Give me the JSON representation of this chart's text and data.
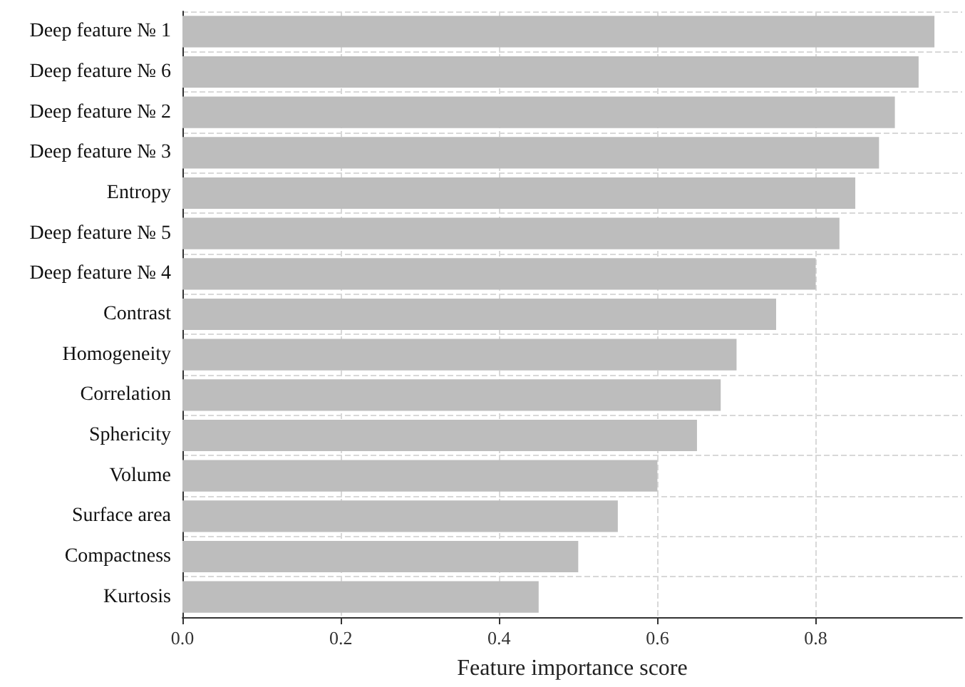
{
  "chart_data": {
    "type": "bar",
    "orientation": "horizontal",
    "xlabel": "Feature importance score",
    "categories": [
      "Deep feature № 1",
      "Deep feature № 6",
      "Deep feature № 2",
      "Deep feature № 3",
      "Entropy",
      "Deep feature № 5",
      "Deep feature № 4",
      "Contrast",
      "Homogeneity",
      "Correlation",
      "Sphericity",
      "Volume",
      "Surface area",
      "Compactness",
      "Kurtosis"
    ],
    "values": [
      0.95,
      0.93,
      0.9,
      0.88,
      0.85,
      0.83,
      0.8,
      0.75,
      0.7,
      0.68,
      0.65,
      0.6,
      0.55,
      0.5,
      0.45
    ],
    "color": "#bdbdbd",
    "xlim": [
      0,
      0.985
    ],
    "xticks": [
      {
        "value": 0,
        "label": "0.0"
      },
      {
        "value": 0.2,
        "label": "0.2"
      },
      {
        "value": 0.4,
        "label": "0.4"
      },
      {
        "value": 0.6,
        "label": "0.6"
      },
      {
        "value": 0.8,
        "label": "0.8"
      }
    ],
    "grid": true
  }
}
